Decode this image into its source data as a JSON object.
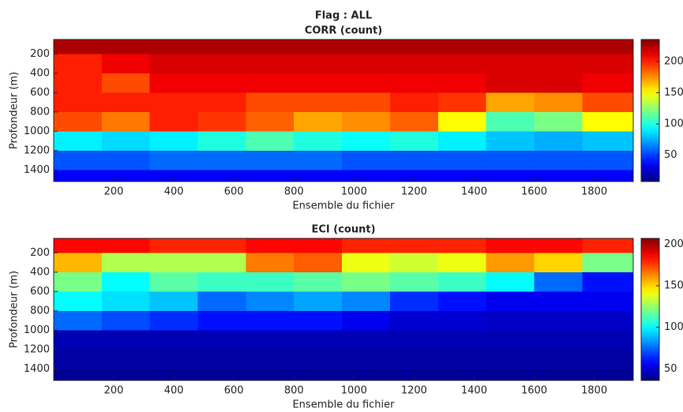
{
  "title": "Flag : ALL",
  "chart_data": [
    {
      "type": "heatmap",
      "title": "CORR (count)",
      "xlabel": "Ensemble du fichier",
      "ylabel": "Profondeur (m)",
      "xlim": [
        0,
        1930
      ],
      "ylim": [
        50,
        1520
      ],
      "y_reversed": true,
      "xticks": [
        200,
        400,
        600,
        800,
        1000,
        1200,
        1400,
        1600,
        1800
      ],
      "yticks": [
        200,
        400,
        600,
        800,
        1000,
        1200,
        1400
      ],
      "colormap": "jet",
      "clim": [
        8,
        235
      ],
      "cticks": [
        50,
        100,
        150,
        200
      ],
      "xedges": [
        0,
        160,
        320,
        480,
        640,
        800,
        960,
        1120,
        1280,
        1440,
        1600,
        1760,
        1930
      ],
      "yedges": [
        50,
        200,
        400,
        600,
        800,
        1000,
        1200,
        1400,
        1520
      ],
      "z": [
        [
          225,
          225,
          225,
          225,
          225,
          225,
          225,
          225,
          225,
          225,
          225,
          225
        ],
        [
          200,
          210,
          215,
          215,
          215,
          215,
          215,
          215,
          215,
          215,
          215,
          215
        ],
        [
          200,
          190,
          210,
          210,
          210,
          210,
          210,
          210,
          210,
          215,
          215,
          210
        ],
        [
          200,
          200,
          200,
          200,
          190,
          190,
          190,
          200,
          195,
          170,
          175,
          190
        ],
        [
          190,
          180,
          200,
          195,
          185,
          170,
          175,
          185,
          150,
          110,
          120,
          150
        ],
        [
          90,
          85,
          90,
          100,
          110,
          100,
          95,
          100,
          90,
          80,
          75,
          80
        ],
        [
          55,
          55,
          60,
          60,
          60,
          60,
          55,
          55,
          55,
          55,
          55,
          55
        ],
        [
          35,
          35,
          35,
          35,
          35,
          35,
          35,
          35,
          35,
          35,
          35,
          35
        ]
      ]
    },
    {
      "type": "heatmap",
      "title": "ECI (count)",
      "xlabel": "Ensemble du fichier",
      "ylabel": "Profondeur (m)",
      "xlim": [
        0,
        1930
      ],
      "ylim": [
        50,
        1520
      ],
      "y_reversed": true,
      "xticks": [
        200,
        400,
        600,
        800,
        1000,
        1200,
        1400,
        1600,
        1800
      ],
      "yticks": [
        200,
        400,
        600,
        800,
        1000,
        1200,
        1400
      ],
      "colormap": "jet",
      "clim": [
        36,
        207
      ],
      "cticks": [
        50,
        100,
        150,
        200
      ],
      "xedges": [
        0,
        160,
        320,
        480,
        640,
        800,
        960,
        1120,
        1280,
        1440,
        1600,
        1760,
        1930
      ],
      "yedges": [
        50,
        200,
        400,
        600,
        800,
        1000,
        1200,
        1400,
        1520
      ],
      "z": [
        [
          185,
          185,
          180,
          180,
          185,
          185,
          180,
          180,
          180,
          185,
          185,
          180
        ],
        [
          155,
          130,
          130,
          130,
          165,
          170,
          140,
          135,
          140,
          160,
          150,
          120
        ],
        [
          120,
          100,
          115,
          110,
          110,
          115,
          120,
          115,
          110,
          100,
          75,
          60
        ],
        [
          100,
          95,
          90,
          75,
          80,
          85,
          80,
          65,
          60,
          55,
          55,
          55
        ],
        [
          75,
          70,
          65,
          60,
          60,
          60,
          55,
          50,
          50,
          48,
          48,
          48
        ],
        [
          45,
          45,
          45,
          45,
          45,
          45,
          45,
          45,
          45,
          45,
          45,
          45
        ],
        [
          42,
          42,
          42,
          42,
          42,
          42,
          42,
          42,
          42,
          42,
          42,
          42
        ],
        [
          40,
          40,
          40,
          40,
          40,
          40,
          40,
          40,
          40,
          40,
          40,
          40
        ]
      ]
    }
  ]
}
